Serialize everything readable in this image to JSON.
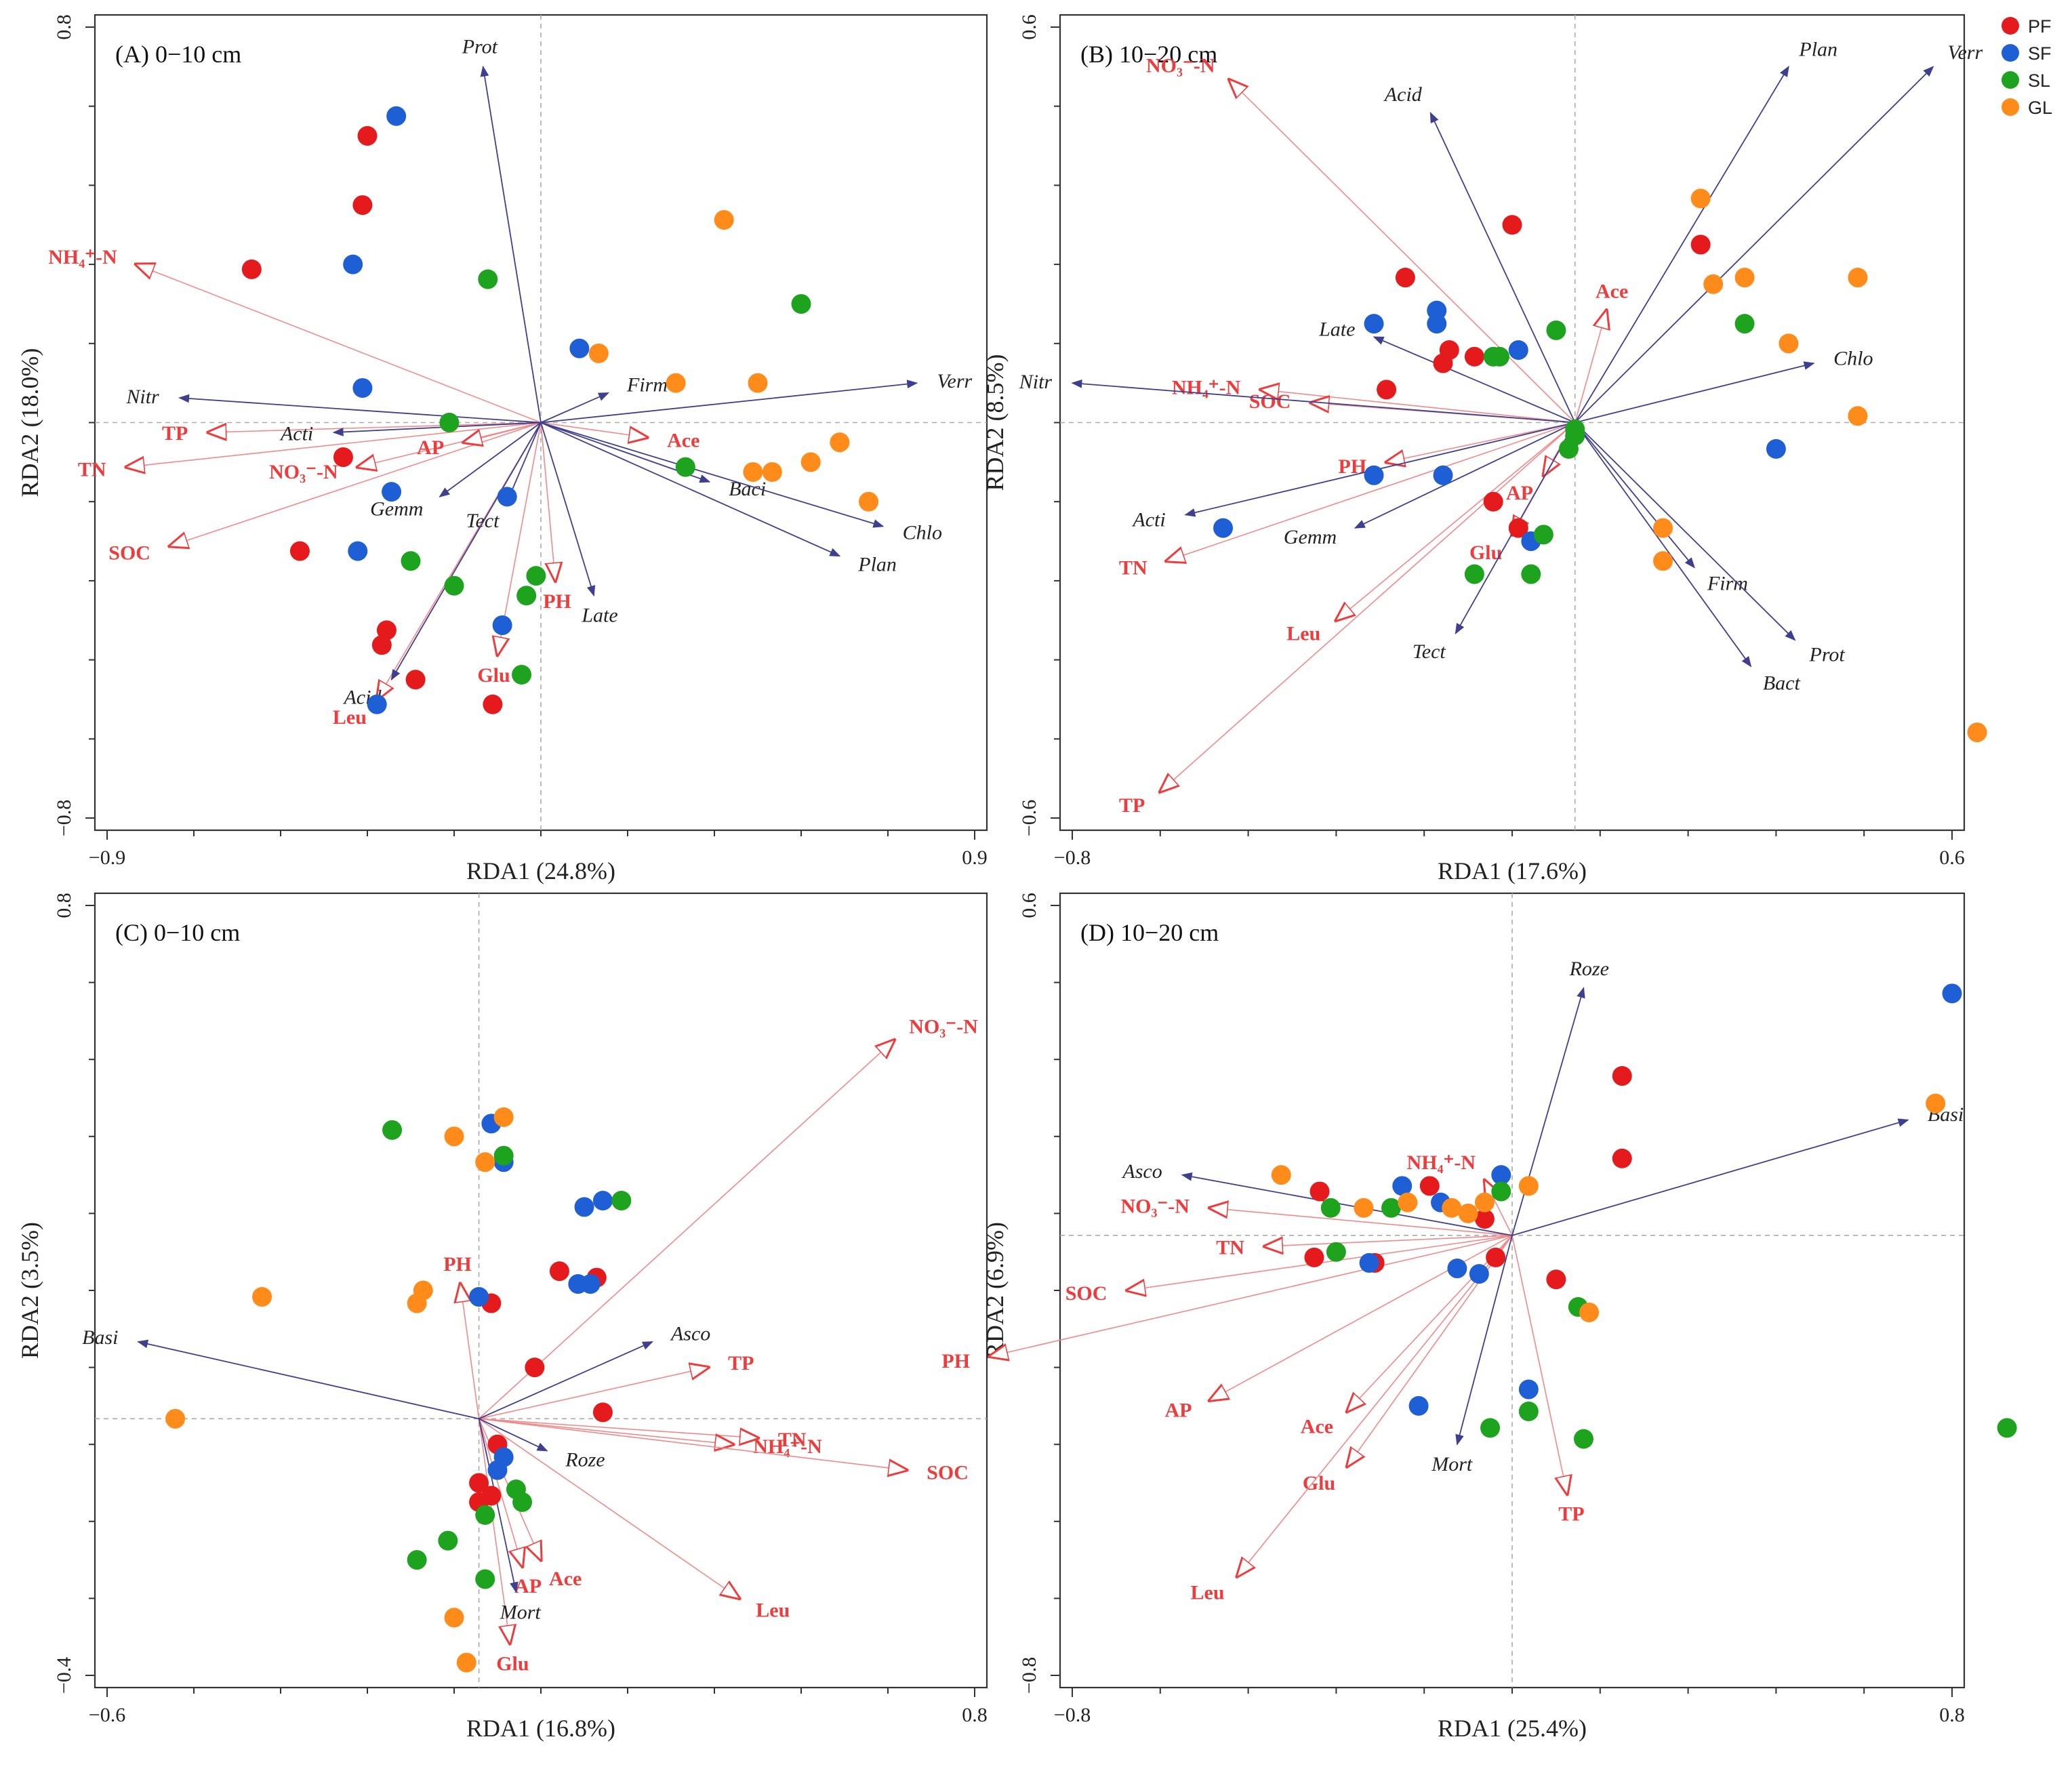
{
  "chart_data": [
    {
      "type": "scatter",
      "title": "(A) 0−10 cm",
      "xlabel": "RDA1 (24.8%)",
      "ylabel": "RDA2 (18.0%)",
      "xlim": [
        -0.9,
        0.9
      ],
      "ylim": [
        -0.8,
        0.8
      ],
      "xticks": [
        "−0.9",
        "0.9"
      ],
      "yticks": [
        "0.8",
        "−0.8"
      ],
      "species": [
        {
          "label": "Prot",
          "x": -0.12,
          "y": 0.72
        },
        {
          "label": "Nitr",
          "x": -0.75,
          "y": 0.05
        },
        {
          "label": "Firm",
          "x": 0.14,
          "y": 0.06
        },
        {
          "label": "Verr",
          "x": 0.78,
          "y": 0.08
        },
        {
          "label": "Acti",
          "x": -0.43,
          "y": -0.02
        },
        {
          "label": "Gemm",
          "x": -0.21,
          "y": -0.15
        },
        {
          "label": "Tect",
          "x": -0.07,
          "y": -0.16
        },
        {
          "label": "Baci",
          "x": 0.35,
          "y": -0.12
        },
        {
          "label": "Chlo",
          "x": 0.71,
          "y": -0.21
        },
        {
          "label": "Plan",
          "x": 0.62,
          "y": -0.27
        },
        {
          "label": "Late",
          "x": 0.11,
          "y": -0.35
        },
        {
          "label": "Acid",
          "x": -0.31,
          "y": -0.52
        }
      ],
      "env": [
        {
          "label": "NH₄⁺-N",
          "x": -0.84,
          "y": 0.32
        },
        {
          "label": "TP",
          "x": -0.69,
          "y": -0.02
        },
        {
          "label": "TN",
          "x": -0.86,
          "y": -0.09
        },
        {
          "label": "SOC",
          "x": -0.77,
          "y": -0.25
        },
        {
          "label": "NO₃⁻-N",
          "x": -0.38,
          "y": -0.09
        },
        {
          "label": "AP",
          "x": -0.16,
          "y": -0.04
        },
        {
          "label": "Ace",
          "x": 0.22,
          "y": -0.03
        },
        {
          "label": "PH",
          "x": 0.03,
          "y": -0.32
        },
        {
          "label": "Glu",
          "x": -0.09,
          "y": -0.47
        },
        {
          "label": "Leu",
          "x": -0.34,
          "y": -0.56
        }
      ],
      "points": {
        "PF": [
          [
            -0.36,
            0.58
          ],
          [
            -0.37,
            0.44
          ],
          [
            -0.6,
            0.31
          ],
          [
            -0.41,
            -0.07
          ],
          [
            -0.5,
            -0.26
          ],
          [
            -0.32,
            -0.42
          ],
          [
            -0.33,
            -0.45
          ],
          [
            -0.26,
            -0.52
          ],
          [
            -0.1,
            -0.57
          ]
        ],
        "SF": [
          [
            -0.3,
            0.62
          ],
          [
            -0.39,
            0.32
          ],
          [
            -0.37,
            0.07
          ],
          [
            -0.31,
            -0.14
          ],
          [
            -0.38,
            -0.26
          ],
          [
            -0.07,
            -0.15
          ],
          [
            -0.08,
            -0.41
          ],
          [
            -0.34,
            -0.57
          ],
          [
            0.08,
            0.15
          ]
        ],
        "SL": [
          [
            -0.11,
            0.29
          ],
          [
            0.54,
            0.24
          ],
          [
            -0.19,
            0.0
          ],
          [
            0.3,
            -0.09
          ],
          [
            -0.27,
            -0.28
          ],
          [
            -0.18,
            -0.33
          ],
          [
            -0.01,
            -0.31
          ],
          [
            -0.03,
            -0.35
          ],
          [
            -0.04,
            -0.51
          ]
        ],
        "GL": [
          [
            0.38,
            0.41
          ],
          [
            0.12,
            0.14
          ],
          [
            0.28,
            0.08
          ],
          [
            0.45,
            0.08
          ],
          [
            0.62,
            -0.04
          ],
          [
            0.56,
            -0.08
          ],
          [
            0.44,
            -0.1
          ],
          [
            0.48,
            -0.1
          ],
          [
            0.68,
            -0.16
          ]
        ]
      }
    },
    {
      "type": "scatter",
      "title": "(B) 10−20 cm",
      "xlabel": "RDA1 (17.6%)",
      "ylabel": "RDA2 (8.5%)",
      "xlim": [
        -0.8,
        0.6
      ],
      "ylim": [
        -0.6,
        0.6
      ],
      "xticks": [
        "−0.8",
        "0.6"
      ],
      "yticks": [
        "0.6",
        "−0.6"
      ],
      "species": [
        {
          "label": "Plan",
          "x": 0.34,
          "y": 0.54
        },
        {
          "label": "Verr",
          "x": 0.57,
          "y": 0.54
        },
        {
          "label": "Acid",
          "x": -0.23,
          "y": 0.47
        },
        {
          "label": "Late",
          "x": -0.32,
          "y": 0.13
        },
        {
          "label": "Chlo",
          "x": 0.38,
          "y": 0.09
        },
        {
          "label": "Nitr",
          "x": -0.8,
          "y": 0.06
        },
        {
          "label": "Acti",
          "x": -0.62,
          "y": -0.14
        },
        {
          "label": "Gemm",
          "x": -0.35,
          "y": -0.16
        },
        {
          "label": "Firm",
          "x": 0.19,
          "y": -0.22
        },
        {
          "label": "Tect",
          "x": -0.19,
          "y": -0.32
        },
        {
          "label": "Prot",
          "x": 0.35,
          "y": -0.33
        },
        {
          "label": "Bact",
          "x": 0.28,
          "y": -0.37
        }
      ],
      "env": [
        {
          "label": "NO₃⁻-N",
          "x": -0.55,
          "y": 0.52
        },
        {
          "label": "Ace",
          "x": 0.05,
          "y": 0.17
        },
        {
          "label": "NH₄⁺-N",
          "x": -0.5,
          "y": 0.05
        },
        {
          "label": "SOC",
          "x": -0.42,
          "y": 0.03
        },
        {
          "label": "PH",
          "x": -0.3,
          "y": -0.06
        },
        {
          "label": "AP",
          "x": -0.05,
          "y": -0.08
        },
        {
          "label": "Glu",
          "x": -0.1,
          "y": -0.17
        },
        {
          "label": "TN",
          "x": -0.65,
          "y": -0.21
        },
        {
          "label": "Leu",
          "x": -0.38,
          "y": -0.3
        },
        {
          "label": "TP",
          "x": -0.66,
          "y": -0.56
        }
      ],
      "points": {
        "PF": [
          [
            -0.1,
            0.3
          ],
          [
            0.2,
            0.27
          ],
          [
            -0.27,
            0.22
          ],
          [
            -0.2,
            0.11
          ],
          [
            -0.21,
            0.09
          ],
          [
            -0.16,
            0.1
          ],
          [
            -0.3,
            0.05
          ],
          [
            -0.13,
            -0.12
          ],
          [
            -0.09,
            -0.16
          ]
        ],
        "SF": [
          [
            -0.32,
            0.15
          ],
          [
            -0.22,
            0.17
          ],
          [
            -0.22,
            0.15
          ],
          [
            -0.09,
            0.11
          ],
          [
            0.32,
            -0.04
          ],
          [
            -0.32,
            -0.08
          ],
          [
            -0.21,
            -0.08
          ],
          [
            -0.56,
            -0.16
          ],
          [
            -0.07,
            -0.18
          ]
        ],
        "SL": [
          [
            -0.03,
            0.14
          ],
          [
            0.27,
            0.15
          ],
          [
            -0.13,
            0.1
          ],
          [
            -0.12,
            0.1
          ],
          [
            0.0,
            -0.01
          ],
          [
            0.0,
            -0.02
          ],
          [
            -0.01,
            -0.04
          ],
          [
            -0.05,
            -0.17
          ],
          [
            -0.16,
            -0.23
          ],
          [
            -0.07,
            -0.23
          ]
        ],
        "GL": [
          [
            0.2,
            0.34
          ],
          [
            0.22,
            0.21
          ],
          [
            0.27,
            0.22
          ],
          [
            0.45,
            0.22
          ],
          [
            0.34,
            0.12
          ],
          [
            0.45,
            0.01
          ],
          [
            0.14,
            -0.16
          ],
          [
            0.14,
            -0.21
          ],
          [
            0.64,
            -0.47
          ]
        ]
      }
    },
    {
      "type": "scatter",
      "title": "(C) 0−10 cm",
      "xlabel": "RDA1 (16.8%)",
      "ylabel": "RDA2 (3.5%)",
      "xlim": [
        -0.6,
        0.8
      ],
      "ylim": [
        -0.4,
        0.8
      ],
      "xticks": [
        "−0.6",
        "0.8"
      ],
      "yticks": [
        "0.8",
        "−0.4"
      ],
      "species": [
        {
          "label": "Asco",
          "x": 0.28,
          "y": 0.12
        },
        {
          "label": "Basi",
          "x": -0.55,
          "y": 0.12
        },
        {
          "label": "Roze",
          "x": 0.11,
          "y": -0.05
        },
        {
          "label": "Mort",
          "x": 0.06,
          "y": -0.27
        }
      ],
      "env": [
        {
          "label": "NO₃⁻-N",
          "x": 0.67,
          "y": 0.59
        },
        {
          "label": "PH",
          "x": -0.03,
          "y": 0.21
        },
        {
          "label": "TP",
          "x": 0.37,
          "y": 0.08
        },
        {
          "label": "TN",
          "x": 0.45,
          "y": -0.03
        },
        {
          "label": "NH₄⁺-N",
          "x": 0.41,
          "y": -0.04
        },
        {
          "label": "SOC",
          "x": 0.69,
          "y": -0.08
        },
        {
          "label": "Ace",
          "x": 0.1,
          "y": -0.22
        },
        {
          "label": "AP",
          "x": 0.07,
          "y": -0.23
        },
        {
          "label": "Leu",
          "x": 0.42,
          "y": -0.28
        },
        {
          "label": "Glu",
          "x": 0.05,
          "y": -0.35
        }
      ],
      "points": {
        "PF": [
          [
            0.13,
            0.23
          ],
          [
            0.19,
            0.22
          ],
          [
            0.02,
            0.18
          ],
          [
            0.09,
            0.08
          ],
          [
            0.2,
            0.01
          ],
          [
            0.03,
            -0.04
          ],
          [
            0.0,
            -0.1
          ],
          [
            0.0,
            -0.13
          ],
          [
            0.02,
            -0.12
          ]
        ],
        "SF": [
          [
            0.02,
            0.46
          ],
          [
            0.04,
            0.4
          ],
          [
            0.17,
            0.33
          ],
          [
            0.2,
            0.34
          ],
          [
            0.16,
            0.21
          ],
          [
            0.18,
            0.21
          ],
          [
            0.0,
            0.19
          ],
          [
            0.04,
            -0.06
          ],
          [
            0.03,
            -0.08
          ]
        ],
        "SL": [
          [
            -0.14,
            0.45
          ],
          [
            0.04,
            0.41
          ],
          [
            0.23,
            0.34
          ],
          [
            0.06,
            -0.11
          ],
          [
            0.07,
            -0.13
          ],
          [
            0.01,
            -0.15
          ],
          [
            -0.05,
            -0.19
          ],
          [
            -0.1,
            -0.22
          ],
          [
            0.01,
            -0.25
          ]
        ],
        "GL": [
          [
            0.04,
            0.47
          ],
          [
            -0.04,
            0.44
          ],
          [
            0.01,
            0.4
          ],
          [
            -0.35,
            0.19
          ],
          [
            -0.09,
            0.2
          ],
          [
            -0.1,
            0.18
          ],
          [
            -0.49,
            0.0
          ],
          [
            -0.04,
            -0.31
          ],
          [
            -0.02,
            -0.38
          ]
        ]
      }
    },
    {
      "type": "scatter",
      "title": "(D) 10−20 cm",
      "xlabel": "RDA1 (25.4%)",
      "ylabel": "RDA2 (6.9%)",
      "xlim": [
        -0.8,
        0.8
      ],
      "ylim": [
        -0.8,
        0.6
      ],
      "xticks": [
        "−0.8",
        "0.8"
      ],
      "yticks": [
        "0.6",
        "−0.8"
      ],
      "species": [
        {
          "label": "Roze",
          "x": 0.13,
          "y": 0.45
        },
        {
          "label": "Basi",
          "x": 0.72,
          "y": 0.21
        },
        {
          "label": "Asco",
          "x": -0.6,
          "y": 0.11
        },
        {
          "label": "Mort",
          "x": -0.1,
          "y": -0.38
        }
      ],
      "env": [
        {
          "label": "NH₄⁺-N",
          "x": -0.05,
          "y": 0.1
        },
        {
          "label": "NO₃⁻-N",
          "x": -0.55,
          "y": 0.05
        },
        {
          "label": "TN",
          "x": -0.45,
          "y": -0.02
        },
        {
          "label": "SOC",
          "x": -0.7,
          "y": -0.1
        },
        {
          "label": "PH",
          "x": -0.95,
          "y": -0.22
        },
        {
          "label": "AP",
          "x": -0.55,
          "y": -0.3
        },
        {
          "label": "Ace",
          "x": -0.3,
          "y": -0.32
        },
        {
          "label": "Glu",
          "x": -0.3,
          "y": -0.42
        },
        {
          "label": "TP",
          "x": 0.1,
          "y": -0.47
        },
        {
          "label": "Leu",
          "x": -0.5,
          "y": -0.62
        }
      ],
      "points": {
        "PF": [
          [
            0.2,
            0.29
          ],
          [
            0.2,
            0.14
          ],
          [
            -0.35,
            0.08
          ],
          [
            -0.15,
            0.09
          ],
          [
            -0.05,
            0.03
          ],
          [
            -0.36,
            -0.04
          ],
          [
            -0.25,
            -0.05
          ],
          [
            -0.03,
            -0.04
          ],
          [
            0.08,
            -0.08
          ]
        ],
        "SF": [
          [
            0.8,
            0.44
          ],
          [
            -0.02,
            0.11
          ],
          [
            -0.2,
            0.09
          ],
          [
            -0.13,
            0.06
          ],
          [
            -0.26,
            -0.05
          ],
          [
            -0.1,
            -0.06
          ],
          [
            -0.06,
            -0.07
          ],
          [
            0.03,
            -0.28
          ],
          [
            -0.17,
            -0.31
          ]
        ],
        "SL": [
          [
            -0.02,
            0.08
          ],
          [
            -0.33,
            0.05
          ],
          [
            -0.22,
            0.05
          ],
          [
            -0.32,
            -0.03
          ],
          [
            0.12,
            -0.13
          ],
          [
            0.03,
            -0.32
          ],
          [
            -0.04,
            -0.35
          ],
          [
            0.13,
            -0.37
          ],
          [
            0.9,
            -0.35
          ]
        ],
        "GL": [
          [
            0.77,
            0.24
          ],
          [
            -0.42,
            0.11
          ],
          [
            -0.27,
            0.05
          ],
          [
            0.03,
            0.09
          ],
          [
            -0.11,
            0.05
          ],
          [
            -0.08,
            0.04
          ],
          [
            -0.19,
            0.06
          ],
          [
            0.14,
            -0.14
          ],
          [
            -0.05,
            0.06
          ]
        ]
      }
    }
  ],
  "legend": [
    {
      "label": "PF",
      "color": "#e41a1c"
    },
    {
      "label": "SF",
      "color": "#1f5fd6"
    },
    {
      "label": "SL",
      "color": "#1ea31e"
    },
    {
      "label": "GL",
      "color": "#ff8c1a"
    }
  ],
  "colors": {
    "species_arrow": "#3f3f8f",
    "env_arrow": "#ee3b3b"
  }
}
